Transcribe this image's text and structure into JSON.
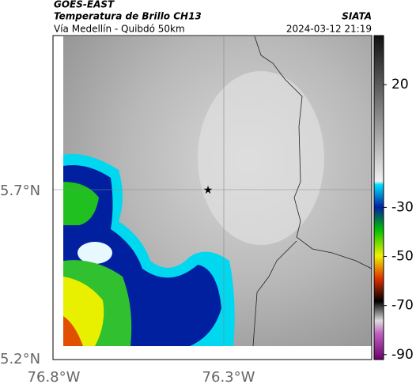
{
  "header": {
    "product": "GOES-EAST",
    "title": "Temperatura de Brillo CH13",
    "subtitle": "Vía Medellín - Quibdó 50km",
    "source": "SIATA",
    "datetime": "2024-03-12 21:19"
  },
  "axes": {
    "lat_ticks": [
      "5.7°N",
      "5.2°N"
    ],
    "lon_ticks": [
      "76.8°W",
      "76.3°W"
    ]
  },
  "colorbar": {
    "lim": [
      -92,
      40
    ],
    "ticks": [
      20,
      -30,
      -50,
      -70,
      -90
    ]
  }
}
